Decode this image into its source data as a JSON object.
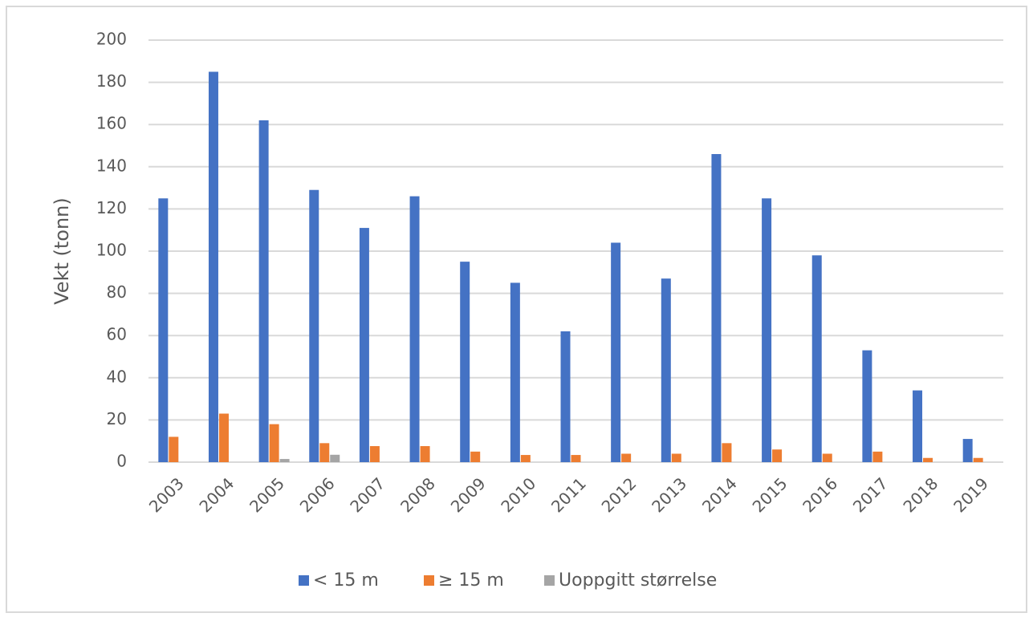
{
  "chart_data": {
    "type": "bar",
    "y_label": "Vekt (tonn)",
    "categories": [
      "2003",
      "2004",
      "2005",
      "2006",
      "2007",
      "2008",
      "2009",
      "2010",
      "2011",
      "2012",
      "2013",
      "2014",
      "2015",
      "2016",
      "2017",
      "2018",
      "2019"
    ],
    "series": [
      {
        "name": "< 15 m",
        "color": "#4472c4",
        "values": [
          125,
          185,
          162,
          129,
          111,
          126,
          95,
          85,
          62,
          104,
          87,
          146,
          125,
          98,
          53,
          34,
          11
        ]
      },
      {
        "name": "≥ 15 m",
        "color": "#ed7d31",
        "values": [
          12,
          23,
          18,
          9,
          7.6,
          7.6,
          5,
          3.4,
          3.4,
          4,
          4,
          9,
          6,
          4,
          5,
          2,
          2
        ]
      },
      {
        "name": "Uoppgitt størrelse",
        "color": "#a5a5a5",
        "values": [
          0,
          0,
          1.5,
          3.5,
          0,
          0,
          0,
          0,
          0,
          0,
          0,
          0,
          0,
          0,
          0,
          0,
          0
        ]
      }
    ],
    "ylim": [
      0,
      200
    ],
    "yticks": [
      0,
      20,
      40,
      60,
      80,
      100,
      120,
      140,
      160,
      180,
      200
    ],
    "grid": true,
    "legend": "bottom"
  }
}
